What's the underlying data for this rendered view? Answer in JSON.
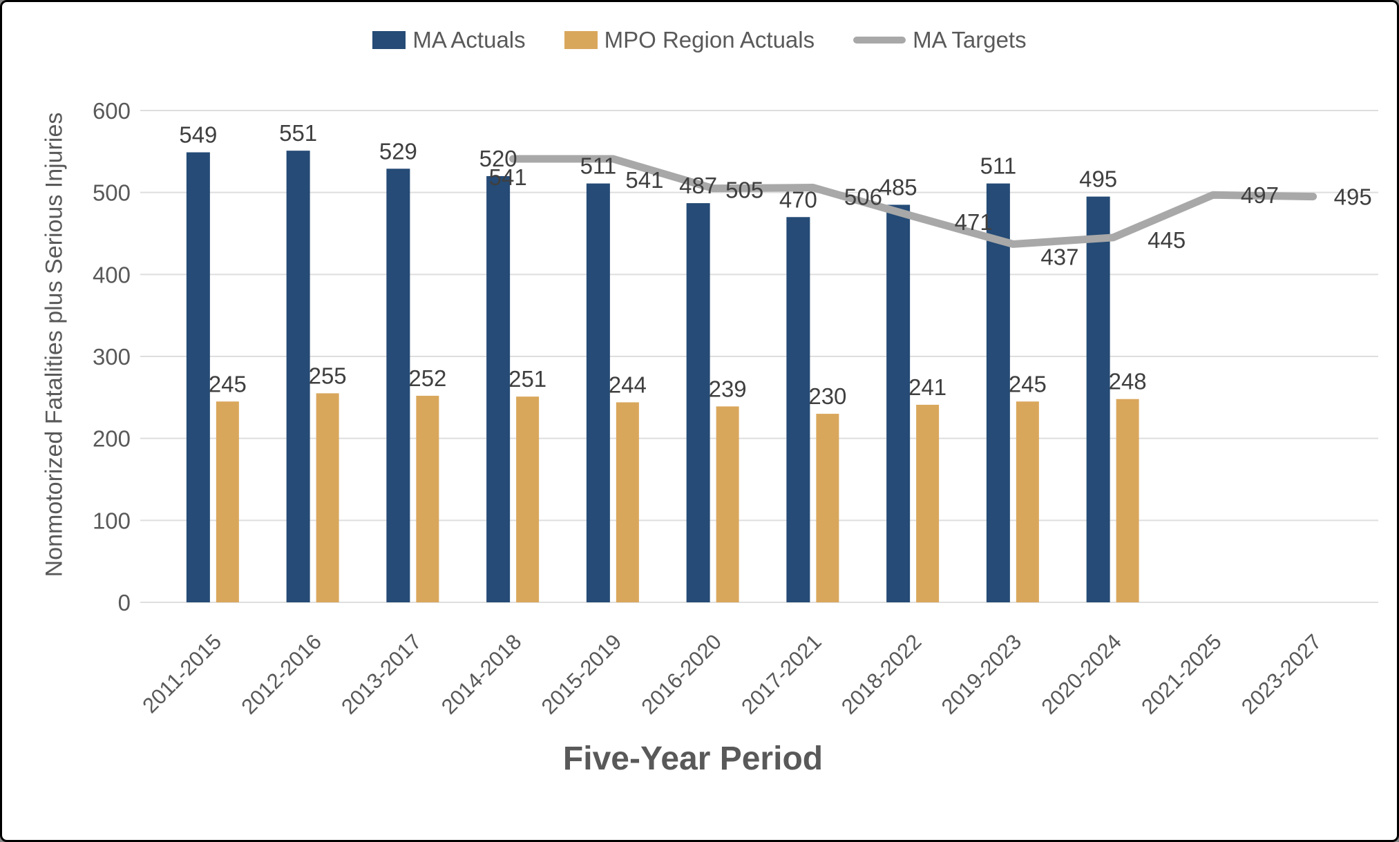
{
  "legend": {
    "items": [
      {
        "label": "MA Actuals",
        "swatch": "bar",
        "color": "#254B76"
      },
      {
        "label": "MPO Region Actuals",
        "swatch": "bar",
        "color": "#D9A75C"
      },
      {
        "label": "MA Targets",
        "swatch": "line",
        "color": "#A8A8A8"
      }
    ]
  },
  "chart_data": {
    "type": "bar",
    "title": "",
    "xlabel": "Five-Year Period",
    "ylabel": "Nonmotorized Fatalities plus Serious Injuries",
    "ylim": [
      0,
      600
    ],
    "yticks": [
      0,
      100,
      200,
      300,
      400,
      500,
      600
    ],
    "grid": true,
    "legend_position": "top",
    "categories": [
      "2011-2015",
      "2012-2016",
      "2013-2017",
      "2014-2018",
      "2015-2019",
      "2016-2020",
      "2017-2021",
      "2018-2022",
      "2019-2023",
      "2020-2024",
      "2021-2025",
      "2023-2027"
    ],
    "series": [
      {
        "name": "MA Actuals",
        "type": "bar",
        "color": "#254B76",
        "values": [
          549,
          551,
          529,
          520,
          511,
          487,
          470,
          485,
          511,
          495,
          null,
          null
        ]
      },
      {
        "name": "MPO Region Actuals",
        "type": "bar",
        "color": "#D9A75C",
        "values": [
          245,
          255,
          252,
          251,
          244,
          239,
          230,
          241,
          245,
          248,
          null,
          null
        ]
      },
      {
        "name": "MA Targets",
        "type": "line",
        "color": "#A8A8A8",
        "values": [
          null,
          null,
          null,
          541,
          541,
          505,
          506,
          471,
          437,
          445,
          497,
          495
        ]
      }
    ]
  },
  "style_colors": {
    "gridline": "#DEDEDE",
    "data_label": "#3F3F3F",
    "axis_text": "#595959"
  }
}
